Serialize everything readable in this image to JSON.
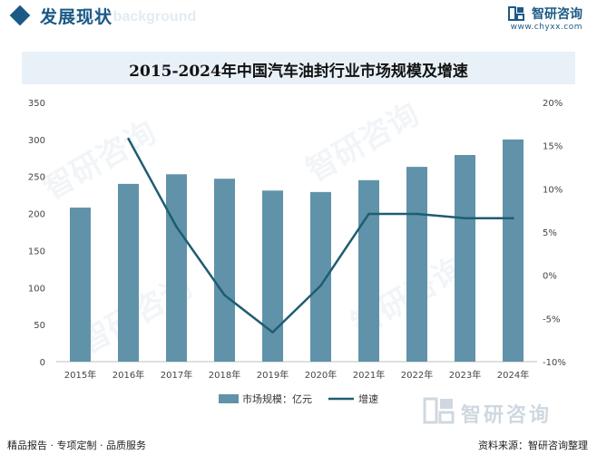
{
  "header": {
    "title": "发展现状",
    "ghost_text": "ment background"
  },
  "brand": {
    "name": "智研咨询",
    "url": "www.chyxx.com"
  },
  "footer": {
    "left": "精品报告 · 专项定制 · 品质服务",
    "source": "资料来源：智研咨询整理",
    "logo_text": "智研咨询"
  },
  "watermark_text": "智研咨询",
  "colors": {
    "brand": "#1b5a86",
    "bar": "#6093a9",
    "line": "#1f5d72"
  },
  "chart_data": {
    "type": "bar",
    "title": "2015-2024年中国汽车油封行业市场规模及增速",
    "categories": [
      "2015年",
      "2016年",
      "2017年",
      "2018年",
      "2019年",
      "2020年",
      "2021年",
      "2022年",
      "2023年",
      "2024年"
    ],
    "series": [
      {
        "name": "市场规模：亿元",
        "type": "bar",
        "axis": "left",
        "values": [
          208,
          240,
          253,
          247,
          231,
          229,
          245,
          263,
          279,
          300
        ]
      },
      {
        "name": "增速",
        "type": "line",
        "axis": "right",
        "values": [
          null,
          15.8,
          5.6,
          -2.3,
          -6.6,
          -1.2,
          7.1,
          7.1,
          6.6,
          6.6
        ]
      }
    ],
    "y_left": {
      "min": 0,
      "max": 350,
      "ticks": [
        0,
        50,
        100,
        150,
        200,
        250,
        300,
        350
      ],
      "tick_labels": [
        "0",
        "50",
        "100",
        "150",
        "200",
        "250",
        "300",
        "350"
      ]
    },
    "y_right": {
      "min": -10,
      "max": 20,
      "ticks": [
        -10,
        -5,
        0,
        5,
        10,
        15,
        20
      ],
      "tick_labels": [
        "-10%",
        "-5%",
        "0%",
        "5%",
        "10%",
        "15%",
        "20%"
      ]
    },
    "grid": false,
    "legend": "bottom"
  }
}
